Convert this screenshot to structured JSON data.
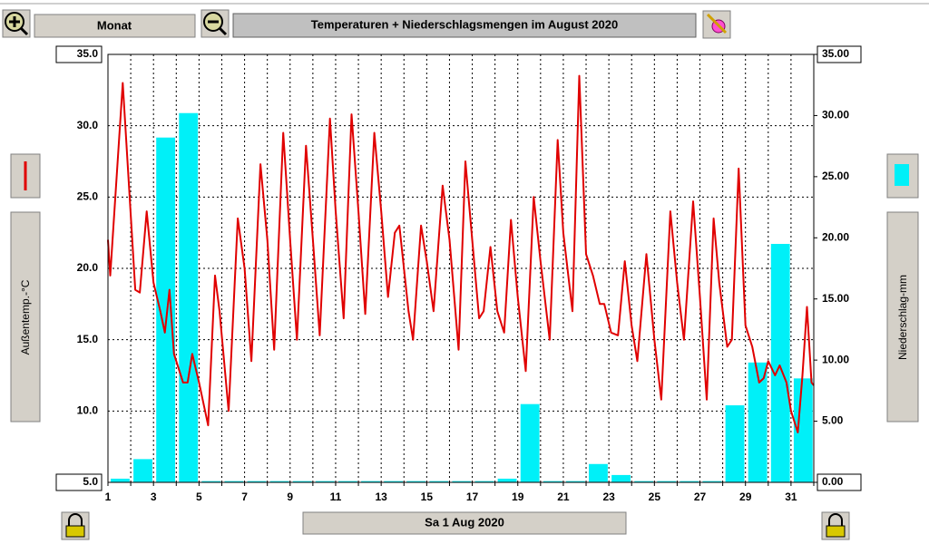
{
  "ui": {
    "period_button": "Monat",
    "date_button": "Sa 1 Aug 2020"
  },
  "chart_data": {
    "type": "combo",
    "title": "Temperaturen + Niederschlagsmengen im August 2020",
    "xlim": [
      1,
      32
    ],
    "xticks": [
      1,
      3,
      5,
      7,
      9,
      11,
      13,
      15,
      17,
      19,
      21,
      23,
      25,
      27,
      29,
      31
    ],
    "xminorticks": [
      2,
      4,
      6,
      8,
      10,
      12,
      14,
      16,
      18,
      20,
      22,
      24,
      26,
      28,
      30,
      32
    ],
    "ylim": [
      5,
      35
    ],
    "yticks": [
      {
        "value": 5,
        "label": "5.0"
      },
      {
        "value": 10,
        "label": "10.0"
      },
      {
        "value": 15,
        "label": "15.0"
      },
      {
        "value": 20,
        "label": "20.0"
      },
      {
        "value": 25,
        "label": "25.0"
      },
      {
        "value": 30,
        "label": "30.0"
      },
      {
        "value": 35,
        "label": "35.0"
      }
    ],
    "y2lim": [
      0,
      35
    ],
    "y2ticks": [
      {
        "value": 0,
        "label": "0.00"
      },
      {
        "value": 5,
        "label": "5.00"
      },
      {
        "value": 10,
        "label": "10.00"
      },
      {
        "value": 15,
        "label": "15.00"
      },
      {
        "value": 20,
        "label": "20.00"
      },
      {
        "value": 25,
        "label": "25.00"
      },
      {
        "value": 30,
        "label": "30.00"
      },
      {
        "value": 35,
        "label": "35.00"
      }
    ],
    "grid": true,
    "series": [
      {
        "name": "Außentemp.-°C",
        "type": "line",
        "color": "#e00000",
        "axis": "y",
        "x": [
          1,
          1.1,
          1.65,
          2.2,
          2.4,
          2.7,
          3.0,
          3.3,
          3.5,
          3.7,
          3.9,
          4.3,
          4.5,
          4.7,
          5.0,
          5.4,
          5.7,
          5.9,
          6.3,
          6.7,
          7.0,
          7.3,
          7.7,
          8.0,
          8.3,
          8.7,
          9.0,
          9.3,
          9.7,
          10.0,
          10.3,
          10.75,
          11.0,
          11.35,
          11.7,
          12.0,
          12.3,
          12.7,
          13.0,
          13.3,
          13.6,
          13.8,
          14.2,
          14.4,
          14.75,
          15.0,
          15.3,
          15.7,
          16.0,
          16.4,
          16.7,
          17.0,
          17.3,
          17.5,
          17.8,
          18.1,
          18.4,
          18.7,
          19.0,
          19.35,
          19.7,
          20.0,
          20.4,
          20.75,
          21.0,
          21.4,
          21.7,
          22.0,
          22.3,
          22.6,
          22.8,
          23.1,
          23.4,
          23.7,
          24.0,
          24.25,
          24.65,
          25.0,
          25.3,
          25.7,
          26.0,
          26.3,
          26.7,
          27.0,
          27.3,
          27.6,
          27.85,
          28.2,
          28.4,
          28.7,
          29.0,
          29.3,
          29.6,
          29.8,
          30.0,
          30.3,
          30.5,
          30.8,
          31.0,
          31.3,
          31.5,
          31.7,
          31.9,
          32.0
        ],
        "values": [
          22,
          19.5,
          33,
          18.5,
          18.3,
          24,
          19,
          17,
          15.5,
          18.5,
          14,
          12,
          12,
          14,
          12,
          9,
          19.5,
          17,
          10,
          23.5,
          20,
          13.5,
          27.3,
          22,
          14.3,
          29.5,
          22,
          15,
          28.6,
          22,
          15.3,
          30.5,
          24,
          16.5,
          30.8,
          24,
          16.8,
          29.5,
          24,
          18,
          22.5,
          23,
          17,
          15,
          23,
          20.5,
          17,
          25.8,
          22,
          14.3,
          27.5,
          22,
          16.5,
          17,
          21.5,
          17,
          15.5,
          23.4,
          18,
          12.8,
          25,
          20.5,
          15,
          29,
          22.5,
          17,
          33.5,
          21,
          19.5,
          17.5,
          17.5,
          15.5,
          15.3,
          20.5,
          16,
          13.5,
          21,
          15,
          10.8,
          24,
          19,
          15,
          24.7,
          18,
          10.8,
          23.5,
          19,
          14.5,
          15,
          27,
          16,
          14.5,
          12,
          12.3,
          13.5,
          12.5,
          13.2,
          12,
          10,
          8.5,
          12.5,
          17.3,
          12,
          11.8
        ]
      },
      {
        "name": "Niederschlag-mm",
        "type": "bar",
        "color": "#00f0f8",
        "axis": "y2",
        "x": [
          1,
          2,
          3,
          4,
          5,
          6,
          7,
          8,
          9,
          10,
          11,
          12,
          13,
          14,
          15,
          16,
          17,
          18,
          19,
          20,
          21,
          22,
          23,
          24,
          25,
          26,
          27,
          28,
          29,
          30,
          31
        ],
        "values": [
          0.3,
          1.9,
          28.2,
          30.2,
          0.1,
          0.1,
          0.1,
          0.1,
          0.1,
          0.1,
          0.1,
          0.1,
          0.1,
          0.1,
          0.1,
          0.1,
          0.1,
          0.3,
          6.4,
          0.1,
          0.1,
          1.5,
          0.6,
          0.1,
          0.1,
          0.1,
          0.1,
          6.3,
          9.8,
          19.5,
          8.5
        ]
      }
    ]
  }
}
